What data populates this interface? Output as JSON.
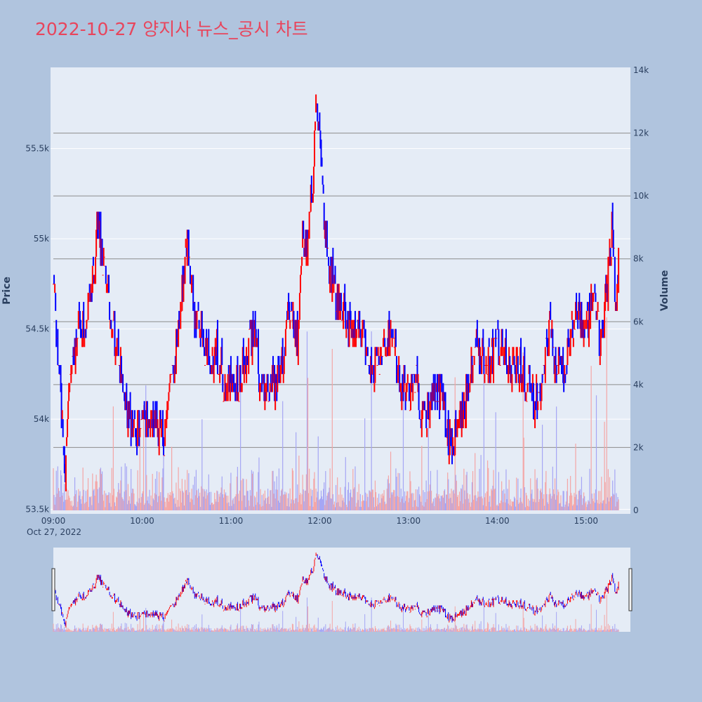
{
  "title": "2022-10-27 양지사 뉴스_공시 차트",
  "colors": {
    "background": "#b0c4de",
    "plot_bg": "#e5ecf6",
    "title": "#e8455c",
    "up": "#ff0000",
    "down": "#0000ff",
    "volume_up": "#f4a6a6",
    "volume_down": "#a6a6f4",
    "volume_grid": "#8c8c8c",
    "price_grid": "#ffffff"
  },
  "chart_data": {
    "type": "candlestick",
    "title": "2022-10-27 양지사 뉴스_공시 차트",
    "date_label": "Oct 27, 2022",
    "price_axis": {
      "label": "Price",
      "range": [
        53475,
        55950
      ],
      "ticks": [
        53500,
        54000,
        54500,
        55000,
        55500
      ],
      "tick_labels": [
        "53.5k",
        "54k",
        "54.5k",
        "55k",
        "55.5k"
      ]
    },
    "volume_axis": {
      "label": "Volume",
      "range": [
        0,
        14000
      ],
      "ticks": [
        0,
        2000,
        4000,
        6000,
        8000,
        10000,
        12000,
        14000
      ],
      "tick_labels": [
        "0",
        "2k",
        "4k",
        "6k",
        "8k",
        "10k",
        "12k",
        "14k"
      ]
    },
    "time_axis": {
      "range": [
        "09:00",
        "15:30"
      ],
      "ticks": [
        "09:00",
        "10:00",
        "11:00",
        "12:00",
        "13:00",
        "14:00",
        "15:00"
      ]
    },
    "price_path": [
      [
        "09:00",
        54800
      ],
      [
        "09:05",
        54100
      ],
      [
        "09:08",
        53700
      ],
      [
        "09:12",
        54300
      ],
      [
        "09:18",
        54500
      ],
      [
        "09:25",
        54600
      ],
      [
        "09:30",
        55100
      ],
      [
        "09:35",
        54800
      ],
      [
        "09:40",
        54500
      ],
      [
        "09:45",
        54300
      ],
      [
        "09:50",
        54000
      ],
      [
        "09:55",
        53900
      ],
      [
        "10:00",
        54000
      ],
      [
        "10:08",
        54000
      ],
      [
        "10:15",
        53900
      ],
      [
        "10:20",
        54200
      ],
      [
        "10:25",
        54500
      ],
      [
        "10:30",
        55000
      ],
      [
        "10:35",
        54600
      ],
      [
        "10:40",
        54500
      ],
      [
        "10:45",
        54300
      ],
      [
        "10:50",
        54400
      ],
      [
        "10:55",
        54200
      ],
      [
        "11:00",
        54200
      ],
      [
        "11:05",
        54200
      ],
      [
        "11:10",
        54300
      ],
      [
        "11:15",
        54500
      ],
      [
        "11:20",
        54200
      ],
      [
        "11:25",
        54150
      ],
      [
        "11:30",
        54200
      ],
      [
        "11:35",
        54300
      ],
      [
        "11:40",
        54600
      ],
      [
        "11:45",
        54400
      ],
      [
        "11:48",
        55000
      ],
      [
        "11:52",
        54900
      ],
      [
        "11:55",
        55300
      ],
      [
        "11:58",
        55800
      ],
      [
        "12:00",
        55500
      ],
      [
        "12:03",
        55100
      ],
      [
        "12:06",
        54900
      ],
      [
        "12:10",
        54700
      ],
      [
        "12:15",
        54600
      ],
      [
        "12:20",
        54500
      ],
      [
        "12:25",
        54600
      ],
      [
        "12:30",
        54400
      ],
      [
        "12:35",
        54300
      ],
      [
        "12:40",
        54300
      ],
      [
        "12:45",
        54450
      ],
      [
        "12:50",
        54400
      ],
      [
        "12:55",
        54200
      ],
      [
        "13:00",
        54150
      ],
      [
        "13:05",
        54200
      ],
      [
        "13:10",
        54000
      ],
      [
        "13:15",
        54100
      ],
      [
        "13:20",
        54150
      ],
      [
        "13:25",
        54000
      ],
      [
        "13:30",
        53850
      ],
      [
        "13:35",
        54000
      ],
      [
        "13:40",
        54150
      ],
      [
        "13:45",
        54400
      ],
      [
        "13:50",
        54350
      ],
      [
        "13:55",
        54300
      ],
      [
        "14:00",
        54400
      ],
      [
        "14:05",
        54350
      ],
      [
        "14:10",
        54300
      ],
      [
        "14:15",
        54300
      ],
      [
        "14:20",
        54200
      ],
      [
        "14:25",
        54100
      ],
      [
        "14:30",
        54200
      ],
      [
        "14:35",
        54500
      ],
      [
        "14:40",
        54300
      ],
      [
        "14:45",
        54250
      ],
      [
        "14:50",
        54500
      ],
      [
        "14:55",
        54600
      ],
      [
        "15:00",
        54500
      ],
      [
        "15:05",
        54700
      ],
      [
        "15:10",
        54400
      ],
      [
        "15:15",
        54800
      ],
      [
        "15:18",
        55100
      ],
      [
        "15:20",
        54600
      ],
      [
        "15:22",
        54900
      ]
    ]
  },
  "range_slider": {
    "visible": true
  }
}
